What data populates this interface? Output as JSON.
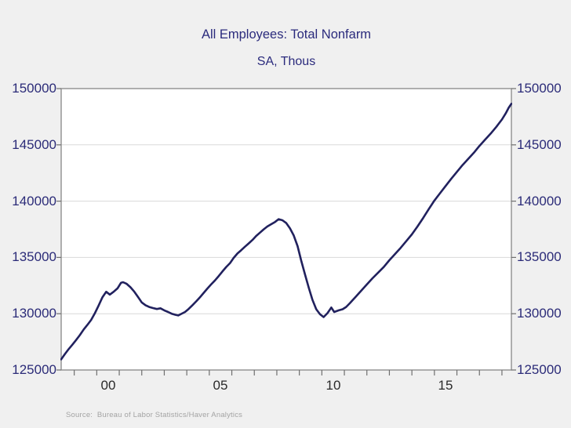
{
  "chart": {
    "title": "All Employees: Total Nonfarm",
    "subtitle": "SA, Thous",
    "source": "Source:  Bureau of Labor Statistics/Haver Analytics"
  },
  "colors": {
    "line": "#21215e",
    "y_axis_text": "#2b2b78",
    "x_axis_text": "#2a2a2a",
    "grid": "#d9d9d9",
    "frame": "#8f8f8f",
    "tick": "#6f6f6f",
    "plot_bg": "#ffffff",
    "fig_bg": "#f0f0f0",
    "source_text": "#a3a3a3"
  },
  "chart_data": {
    "type": "line",
    "title": "All Employees: Total Nonfarm",
    "subtitle": "SA, Thous",
    "xlabel": "",
    "ylabel": "SA, Thous",
    "x_range": [
      1998.42,
      2018.42
    ],
    "ylim": [
      125000,
      150000
    ],
    "y_ticks": [
      125000,
      130000,
      135000,
      140000,
      145000,
      150000
    ],
    "x_tick_labels": [
      {
        "x": 2000.5,
        "label": "00"
      },
      {
        "x": 2005.5,
        "label": "05"
      },
      {
        "x": 2010.5,
        "label": "10"
      },
      {
        "x": 2015.5,
        "label": "15"
      }
    ],
    "grid": "horizontal",
    "legend": "none",
    "series": [
      {
        "name": "All Employees: Total Nonfarm (SA, Thous)",
        "points": [
          [
            1998.42,
            125950
          ],
          [
            1998.58,
            126400
          ],
          [
            1998.75,
            126850
          ],
          [
            1998.92,
            127250
          ],
          [
            1999.08,
            127650
          ],
          [
            1999.25,
            128100
          ],
          [
            1999.42,
            128600
          ],
          [
            1999.58,
            129000
          ],
          [
            1999.75,
            129450
          ],
          [
            1999.92,
            130050
          ],
          [
            2000.08,
            130700
          ],
          [
            2000.25,
            131450
          ],
          [
            2000.42,
            131950
          ],
          [
            2000.58,
            131700
          ],
          [
            2000.75,
            131950
          ],
          [
            2000.92,
            132250
          ],
          [
            2001.08,
            132750
          ],
          [
            2001.17,
            132800
          ],
          [
            2001.33,
            132650
          ],
          [
            2001.5,
            132350
          ],
          [
            2001.67,
            131950
          ],
          [
            2001.83,
            131500
          ],
          [
            2002.0,
            131000
          ],
          [
            2002.17,
            130750
          ],
          [
            2002.33,
            130600
          ],
          [
            2002.5,
            130500
          ],
          [
            2002.67,
            130420
          ],
          [
            2002.83,
            130480
          ],
          [
            2003.0,
            130300
          ],
          [
            2003.17,
            130150
          ],
          [
            2003.33,
            130000
          ],
          [
            2003.5,
            129900
          ],
          [
            2003.62,
            129850
          ],
          [
            2003.75,
            129980
          ],
          [
            2003.92,
            130150
          ],
          [
            2004.08,
            130420
          ],
          [
            2004.25,
            130750
          ],
          [
            2004.42,
            131100
          ],
          [
            2004.58,
            131450
          ],
          [
            2004.75,
            131850
          ],
          [
            2004.92,
            132250
          ],
          [
            2005.08,
            132600
          ],
          [
            2005.25,
            132950
          ],
          [
            2005.42,
            133350
          ],
          [
            2005.58,
            133750
          ],
          [
            2005.75,
            134150
          ],
          [
            2005.92,
            134500
          ],
          [
            2006.08,
            134950
          ],
          [
            2006.25,
            135350
          ],
          [
            2006.42,
            135650
          ],
          [
            2006.58,
            135950
          ],
          [
            2006.75,
            136250
          ],
          [
            2006.92,
            136550
          ],
          [
            2007.08,
            136900
          ],
          [
            2007.25,
            137200
          ],
          [
            2007.42,
            137500
          ],
          [
            2007.58,
            137750
          ],
          [
            2007.75,
            137950
          ],
          [
            2007.92,
            138150
          ],
          [
            2008.08,
            138400
          ],
          [
            2008.25,
            138300
          ],
          [
            2008.42,
            138050
          ],
          [
            2008.58,
            137600
          ],
          [
            2008.75,
            136950
          ],
          [
            2008.92,
            136000
          ],
          [
            2009.08,
            134750
          ],
          [
            2009.25,
            133500
          ],
          [
            2009.42,
            132300
          ],
          [
            2009.58,
            131250
          ],
          [
            2009.75,
            130400
          ],
          [
            2009.92,
            129950
          ],
          [
            2010.08,
            129700
          ],
          [
            2010.25,
            130050
          ],
          [
            2010.42,
            130550
          ],
          [
            2010.55,
            130150
          ],
          [
            2010.75,
            130300
          ],
          [
            2010.92,
            130400
          ],
          [
            2011.08,
            130600
          ],
          [
            2011.25,
            130950
          ],
          [
            2011.5,
            131500
          ],
          [
            2011.75,
            132050
          ],
          [
            2012.0,
            132600
          ],
          [
            2012.25,
            133150
          ],
          [
            2012.5,
            133650
          ],
          [
            2012.75,
            134150
          ],
          [
            2013.0,
            134750
          ],
          [
            2013.25,
            135300
          ],
          [
            2013.5,
            135850
          ],
          [
            2013.75,
            136450
          ],
          [
            2014.0,
            137050
          ],
          [
            2014.25,
            137750
          ],
          [
            2014.5,
            138500
          ],
          [
            2014.75,
            139300
          ],
          [
            2015.0,
            140050
          ],
          [
            2015.25,
            140700
          ],
          [
            2015.5,
            141350
          ],
          [
            2015.75,
            142000
          ],
          [
            2016.0,
            142600
          ],
          [
            2016.25,
            143200
          ],
          [
            2016.5,
            143750
          ],
          [
            2016.75,
            144300
          ],
          [
            2017.0,
            144900
          ],
          [
            2017.25,
            145450
          ],
          [
            2017.5,
            146000
          ],
          [
            2017.75,
            146600
          ],
          [
            2018.0,
            147250
          ],
          [
            2018.17,
            147800
          ],
          [
            2018.3,
            148300
          ],
          [
            2018.42,
            148650
          ]
        ]
      }
    ]
  }
}
